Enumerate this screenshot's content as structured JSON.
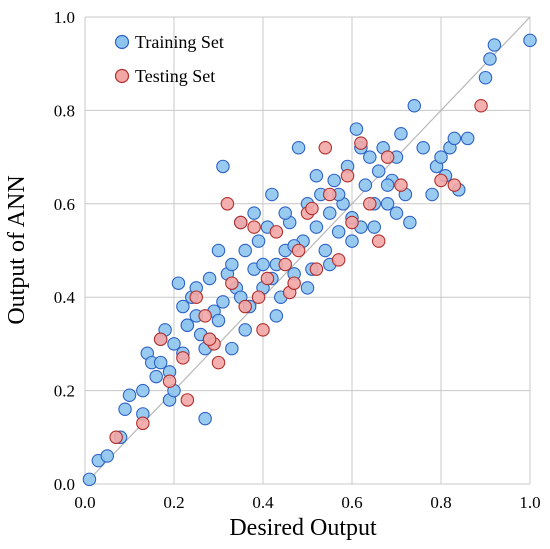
{
  "chart_data": {
    "type": "scatter",
    "title": "",
    "xlabel": "Desired Output",
    "ylabel": "Output of ANN",
    "xlim": [
      0.0,
      1.0
    ],
    "ylim": [
      0.0,
      1.0
    ],
    "xticks": [
      "0.0",
      "0.2",
      "0.4",
      "0.6",
      "0.8",
      "1.0"
    ],
    "yticks": [
      "0.0",
      "0.2",
      "0.4",
      "0.6",
      "0.8",
      "1.0"
    ],
    "grid": true,
    "legend_position": "top-left",
    "reference_line": "y = x",
    "series": [
      {
        "name": "Training Set",
        "fill": "#8EC5EF",
        "stroke": "#2F63C4",
        "points": [
          [
            0.01,
            0.01
          ],
          [
            0.03,
            0.05
          ],
          [
            0.05,
            0.06
          ],
          [
            0.08,
            0.1
          ],
          [
            0.09,
            0.16
          ],
          [
            0.1,
            0.19
          ],
          [
            0.13,
            0.15
          ],
          [
            0.13,
            0.2
          ],
          [
            0.14,
            0.28
          ],
          [
            0.15,
            0.26
          ],
          [
            0.16,
            0.23
          ],
          [
            0.17,
            0.31
          ],
          [
            0.17,
            0.26
          ],
          [
            0.18,
            0.33
          ],
          [
            0.19,
            0.24
          ],
          [
            0.19,
            0.18
          ],
          [
            0.2,
            0.2
          ],
          [
            0.2,
            0.3
          ],
          [
            0.21,
            0.43
          ],
          [
            0.22,
            0.38
          ],
          [
            0.22,
            0.28
          ],
          [
            0.23,
            0.34
          ],
          [
            0.24,
            0.4
          ],
          [
            0.25,
            0.36
          ],
          [
            0.26,
            0.32
          ],
          [
            0.27,
            0.14
          ],
          [
            0.27,
            0.29
          ],
          [
            0.28,
            0.44
          ],
          [
            0.29,
            0.37
          ],
          [
            0.3,
            0.35
          ],
          [
            0.3,
            0.5
          ],
          [
            0.31,
            0.68
          ],
          [
            0.32,
            0.45
          ],
          [
            0.33,
            0.29
          ],
          [
            0.34,
            0.42
          ],
          [
            0.35,
            0.4
          ],
          [
            0.35,
            0.56
          ],
          [
            0.36,
            0.5
          ],
          [
            0.37,
            0.38
          ],
          [
            0.38,
            0.46
          ],
          [
            0.39,
            0.52
          ],
          [
            0.4,
            0.42
          ],
          [
            0.41,
            0.55
          ],
          [
            0.42,
            0.44
          ],
          [
            0.42,
            0.62
          ],
          [
            0.43,
            0.47
          ],
          [
            0.44,
            0.4
          ],
          [
            0.45,
            0.5
          ],
          [
            0.46,
            0.56
          ],
          [
            0.47,
            0.45
          ],
          [
            0.48,
            0.72
          ],
          [
            0.49,
            0.52
          ],
          [
            0.5,
            0.6
          ],
          [
            0.51,
            0.46
          ],
          [
            0.52,
            0.55
          ],
          [
            0.53,
            0.62
          ],
          [
            0.54,
            0.5
          ],
          [
            0.55,
            0.58
          ],
          [
            0.56,
            0.65
          ],
          [
            0.57,
            0.54
          ],
          [
            0.58,
            0.6
          ],
          [
            0.59,
            0.68
          ],
          [
            0.6,
            0.57
          ],
          [
            0.61,
            0.76
          ],
          [
            0.62,
            0.55
          ],
          [
            0.63,
            0.64
          ],
          [
            0.64,
            0.7
          ],
          [
            0.65,
            0.6
          ],
          [
            0.66,
            0.67
          ],
          [
            0.67,
            0.72
          ],
          [
            0.68,
            0.6
          ],
          [
            0.69,
            0.65
          ],
          [
            0.7,
            0.7
          ],
          [
            0.71,
            0.75
          ],
          [
            0.72,
            0.62
          ],
          [
            0.73,
            0.56
          ],
          [
            0.74,
            0.81
          ],
          [
            0.76,
            0.72
          ],
          [
            0.78,
            0.62
          ],
          [
            0.79,
            0.68
          ],
          [
            0.8,
            0.7
          ],
          [
            0.81,
            0.66
          ],
          [
            0.82,
            0.72
          ],
          [
            0.83,
            0.74
          ],
          [
            0.84,
            0.63
          ],
          [
            0.86,
            0.74
          ],
          [
            0.9,
            0.87
          ],
          [
            0.91,
            0.91
          ],
          [
            0.92,
            0.94
          ],
          [
            1.0,
            0.95
          ],
          [
            0.23,
            0.34
          ],
          [
            0.25,
            0.42
          ],
          [
            0.28,
            0.31
          ],
          [
            0.31,
            0.39
          ],
          [
            0.33,
            0.47
          ],
          [
            0.36,
            0.33
          ],
          [
            0.38,
            0.58
          ],
          [
            0.4,
            0.47
          ],
          [
            0.43,
            0.36
          ],
          [
            0.45,
            0.58
          ],
          [
            0.47,
            0.51
          ],
          [
            0.5,
            0.42
          ],
          [
            0.52,
            0.66
          ],
          [
            0.55,
            0.47
          ],
          [
            0.57,
            0.62
          ],
          [
            0.6,
            0.52
          ],
          [
            0.62,
            0.72
          ],
          [
            0.65,
            0.55
          ],
          [
            0.68,
            0.64
          ],
          [
            0.7,
            0.58
          ]
        ]
      },
      {
        "name": "Testing Set",
        "fill": "#F2A7A5",
        "stroke": "#B0302E",
        "points": [
          [
            0.07,
            0.1
          ],
          [
            0.13,
            0.13
          ],
          [
            0.17,
            0.31
          ],
          [
            0.19,
            0.22
          ],
          [
            0.22,
            0.27
          ],
          [
            0.23,
            0.18
          ],
          [
            0.25,
            0.4
          ],
          [
            0.27,
            0.36
          ],
          [
            0.29,
            0.3
          ],
          [
            0.3,
            0.26
          ],
          [
            0.32,
            0.6
          ],
          [
            0.33,
            0.43
          ],
          [
            0.35,
            0.56
          ],
          [
            0.36,
            0.38
          ],
          [
            0.38,
            0.55
          ],
          [
            0.4,
            0.33
          ],
          [
            0.41,
            0.44
          ],
          [
            0.43,
            0.54
          ],
          [
            0.45,
            0.47
          ],
          [
            0.46,
            0.41
          ],
          [
            0.48,
            0.5
          ],
          [
            0.5,
            0.58
          ],
          [
            0.52,
            0.46
          ],
          [
            0.54,
            0.72
          ],
          [
            0.55,
            0.62
          ],
          [
            0.57,
            0.48
          ],
          [
            0.59,
            0.66
          ],
          [
            0.6,
            0.56
          ],
          [
            0.62,
            0.73
          ],
          [
            0.64,
            0.6
          ],
          [
            0.66,
            0.52
          ],
          [
            0.68,
            0.7
          ],
          [
            0.71,
            0.64
          ],
          [
            0.8,
            0.65
          ],
          [
            0.83,
            0.64
          ],
          [
            0.89,
            0.81
          ],
          [
            0.47,
            0.43
          ],
          [
            0.51,
            0.59
          ],
          [
            0.39,
            0.4
          ],
          [
            0.28,
            0.31
          ]
        ]
      }
    ]
  }
}
